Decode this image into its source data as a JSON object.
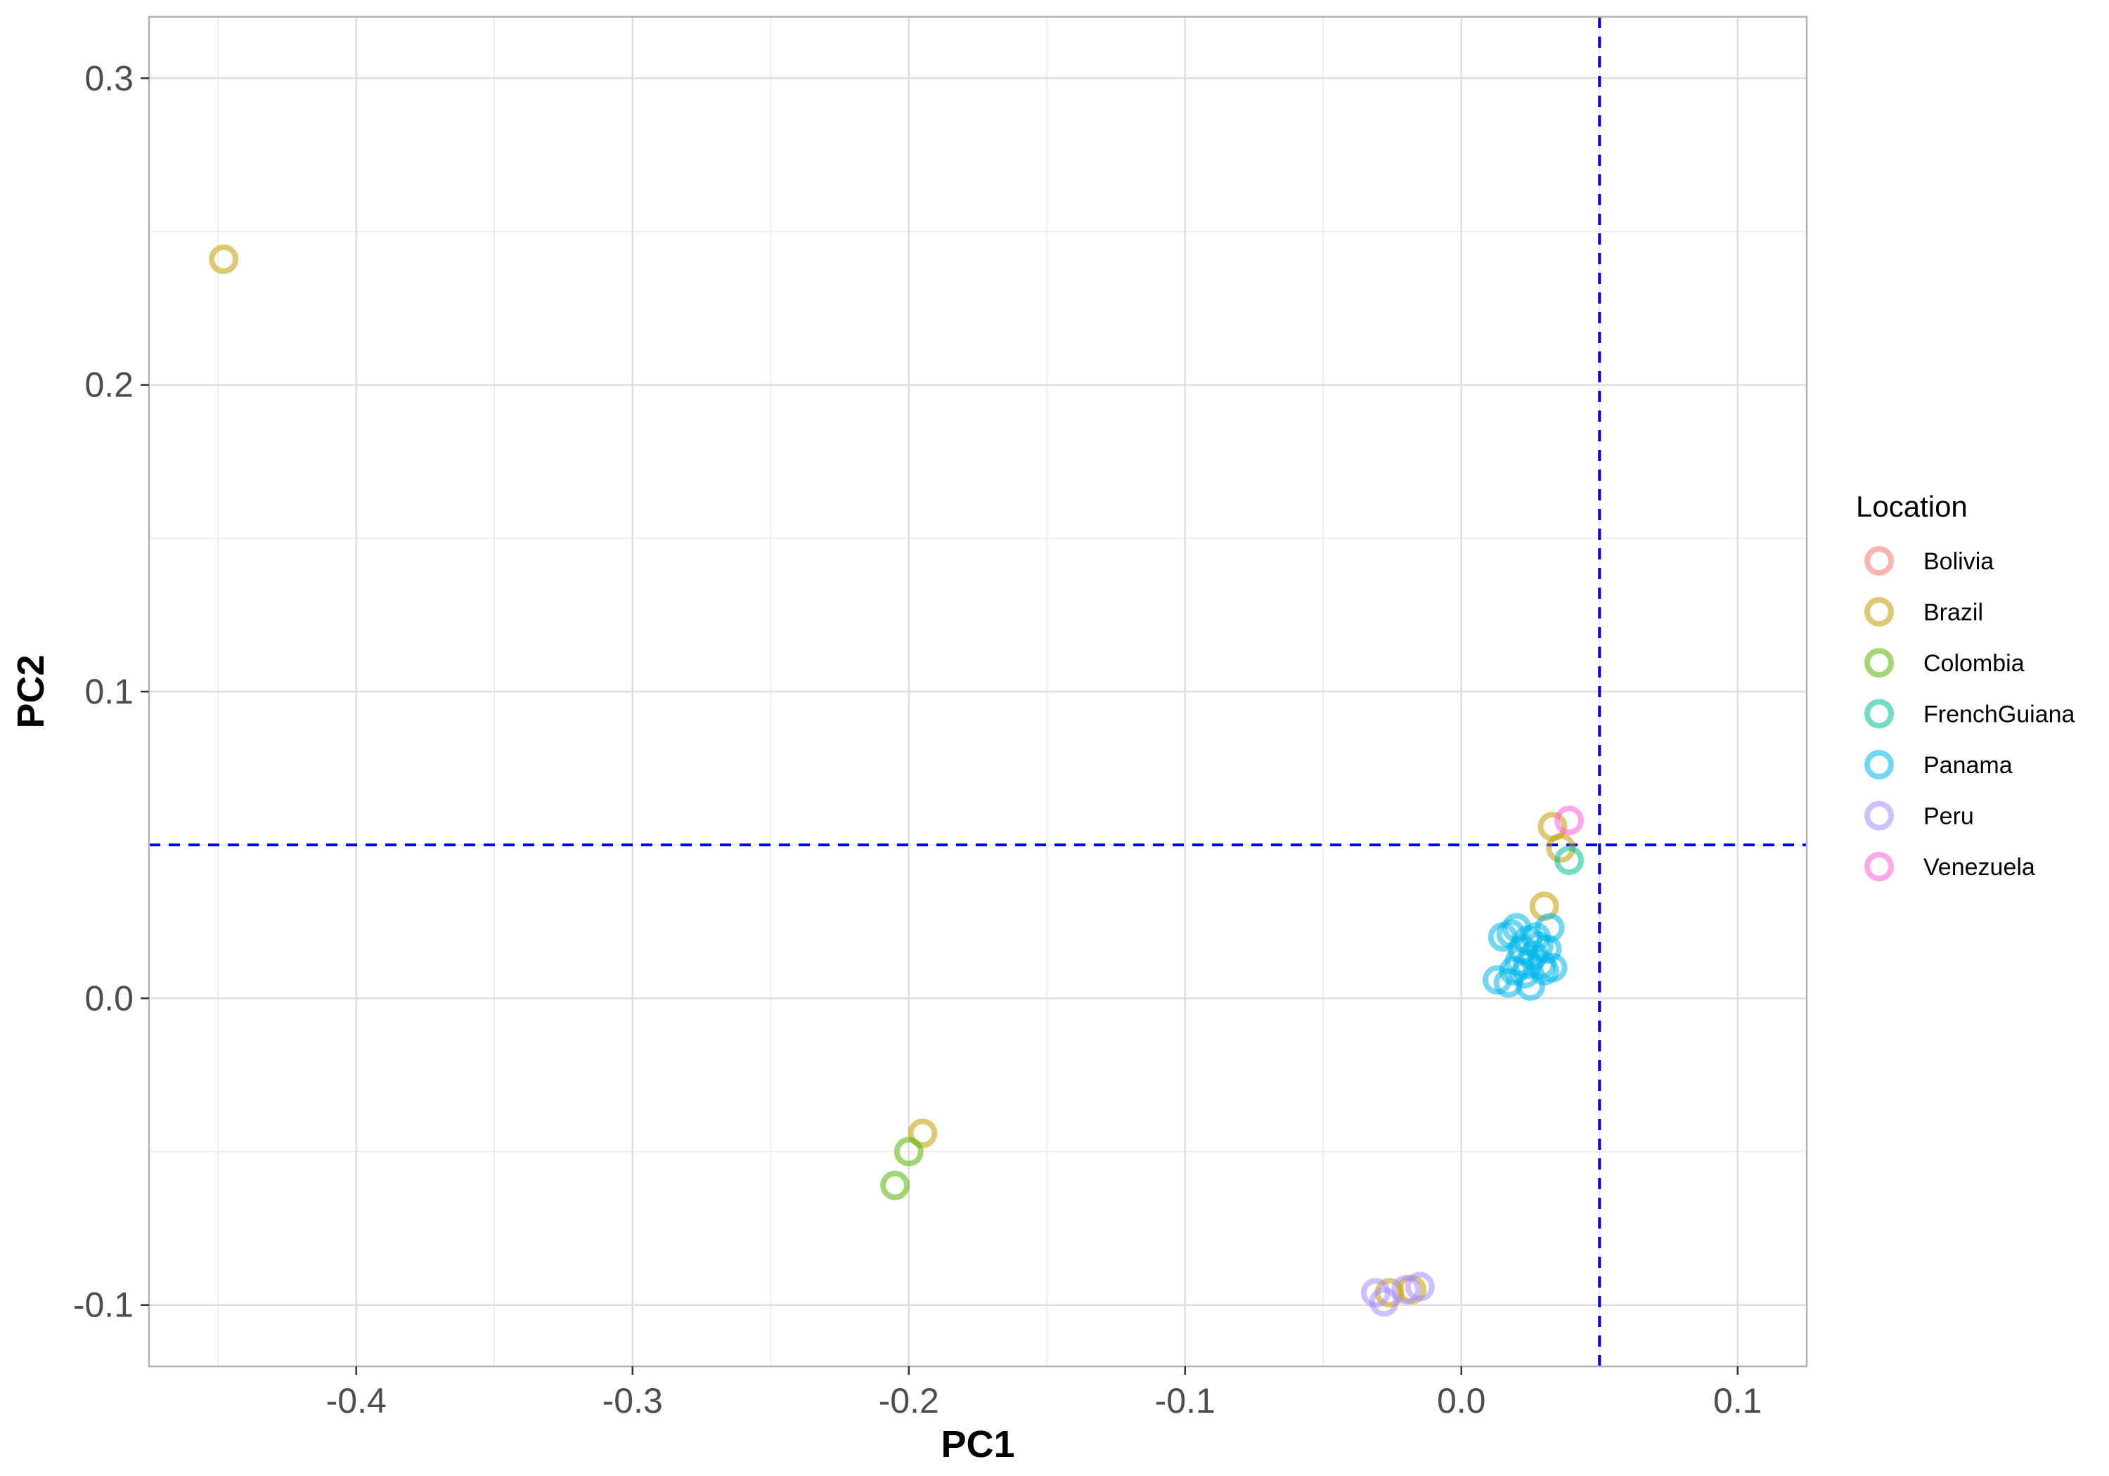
{
  "chart_data": {
    "type": "scatter",
    "xlabel": "PC1",
    "ylabel": "PC2",
    "xlim": [
      -0.475,
      0.125
    ],
    "ylim": [
      -0.12,
      0.32
    ],
    "x_ticks": [
      -0.4,
      -0.3,
      -0.2,
      -0.1,
      0.0,
      0.1
    ],
    "x_tick_labels": [
      "-0.4",
      "-0.3",
      "-0.2",
      "-0.1",
      "0.0",
      "0.1"
    ],
    "y_ticks": [
      -0.1,
      0.0,
      0.1,
      0.2,
      0.3
    ],
    "y_tick_labels": [
      "-0.1",
      "0.0",
      "0.1",
      "0.2",
      "0.3"
    ],
    "grid": true,
    "reference_lines": {
      "vertical_x": 0.05,
      "horizontal_y": 0.05,
      "color": "#0000ff",
      "style": "dashed"
    },
    "legend": {
      "title": "Location",
      "placement": "right"
    },
    "marker": "open-circle",
    "series": [
      {
        "name": "Bolivia",
        "color": "#f8766d",
        "points": []
      },
      {
        "name": "Brazil",
        "color": "#c49a00",
        "points": [
          [
            -0.448,
            0.241
          ],
          [
            -0.195,
            -0.044
          ],
          [
            0.03,
            0.03
          ],
          [
            0.033,
            0.056
          ],
          [
            0.036,
            0.049
          ],
          [
            -0.026,
            -0.096
          ],
          [
            -0.018,
            -0.095
          ]
        ]
      },
      {
        "name": "Colombia",
        "color": "#53b400",
        "points": [
          [
            -0.205,
            -0.061
          ],
          [
            -0.2,
            -0.05
          ]
        ]
      },
      {
        "name": "FrenchGuiana",
        "color": "#00c094",
        "points": [
          [
            0.039,
            0.045
          ]
        ]
      },
      {
        "name": "Panama",
        "color": "#00b6eb",
        "points": [
          [
            0.013,
            0.006
          ],
          [
            0.017,
            0.005
          ],
          [
            0.015,
            0.02
          ],
          [
            0.018,
            0.021
          ],
          [
            0.02,
            0.023
          ],
          [
            0.021,
            0.012
          ],
          [
            0.022,
            0.016
          ],
          [
            0.023,
            0.008
          ],
          [
            0.024,
            0.019
          ],
          [
            0.025,
            0.004
          ],
          [
            0.026,
            0.014
          ],
          [
            0.027,
            0.02
          ],
          [
            0.028,
            0.017
          ],
          [
            0.029,
            0.011
          ],
          [
            0.03,
            0.009
          ],
          [
            0.031,
            0.016
          ],
          [
            0.032,
            0.023
          ],
          [
            0.033,
            0.01
          ],
          [
            0.019,
            0.009
          ],
          [
            0.024,
            0.011
          ]
        ]
      },
      {
        "name": "Peru",
        "color": "#a58aff",
        "points": [
          [
            -0.031,
            -0.096
          ],
          [
            -0.028,
            -0.099
          ],
          [
            -0.02,
            -0.095
          ],
          [
            -0.015,
            -0.094
          ]
        ]
      },
      {
        "name": "Venezuela",
        "color": "#fb61d7",
        "points": [
          [
            0.039,
            0.058
          ]
        ]
      }
    ]
  }
}
